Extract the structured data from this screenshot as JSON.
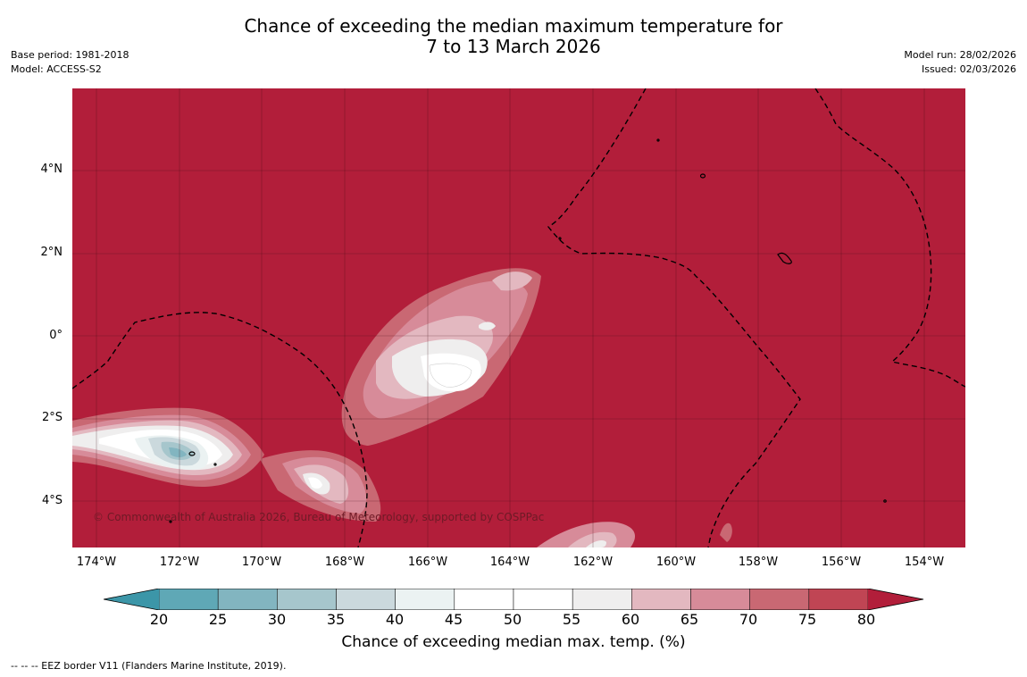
{
  "title": {
    "line1": "Chance of exceeding the median maximum temperature for",
    "line2": "7 to 13 March 2026"
  },
  "meta_left": {
    "base_period": "Base period: 1981-2018",
    "model": "Model: ACCESS-S2"
  },
  "meta_right": {
    "model_run": "Model run: 28/02/2026",
    "issued": "Issued: 02/03/2026"
  },
  "map": {
    "latitude_labels": [
      "4°N",
      "2°N",
      "0°",
      "2°S",
      "4°S"
    ],
    "longitude_labels": [
      "174°W",
      "172°W",
      "170°W",
      "168°W",
      "166°W",
      "164°W",
      "162°W",
      "160°W",
      "158°W",
      "156°W",
      "154°W"
    ],
    "lat_range": [
      -5.1,
      5.8
    ],
    "lon_range": [
      -174.6,
      -153.1
    ],
    "copyright": "© Commonwealth of Australia 2026, Bureau of Meteorology, supported by COSPPac"
  },
  "colorbar": {
    "ticks": [
      "20",
      "25",
      "30",
      "35",
      "40",
      "45",
      "50",
      "55",
      "60",
      "65",
      "70",
      "75",
      "80"
    ],
    "label": "Chance of exceeding median max. temp. (%)",
    "colors": [
      "#5fa8b6",
      "#82b5c0",
      "#a6c6cc",
      "#cbd9dd",
      "#ebf2f2",
      "#ffffff",
      "#ffffff",
      "#efeeee",
      "#e3b8c0",
      "#d78b99",
      "#c96873",
      "#c04554"
    ],
    "under_color": "#3c96a8",
    "over_color": "#b21e3a"
  },
  "footnote": "--  --  -- EEZ border V11 (Flanders Marine Institute, 2019)."
}
